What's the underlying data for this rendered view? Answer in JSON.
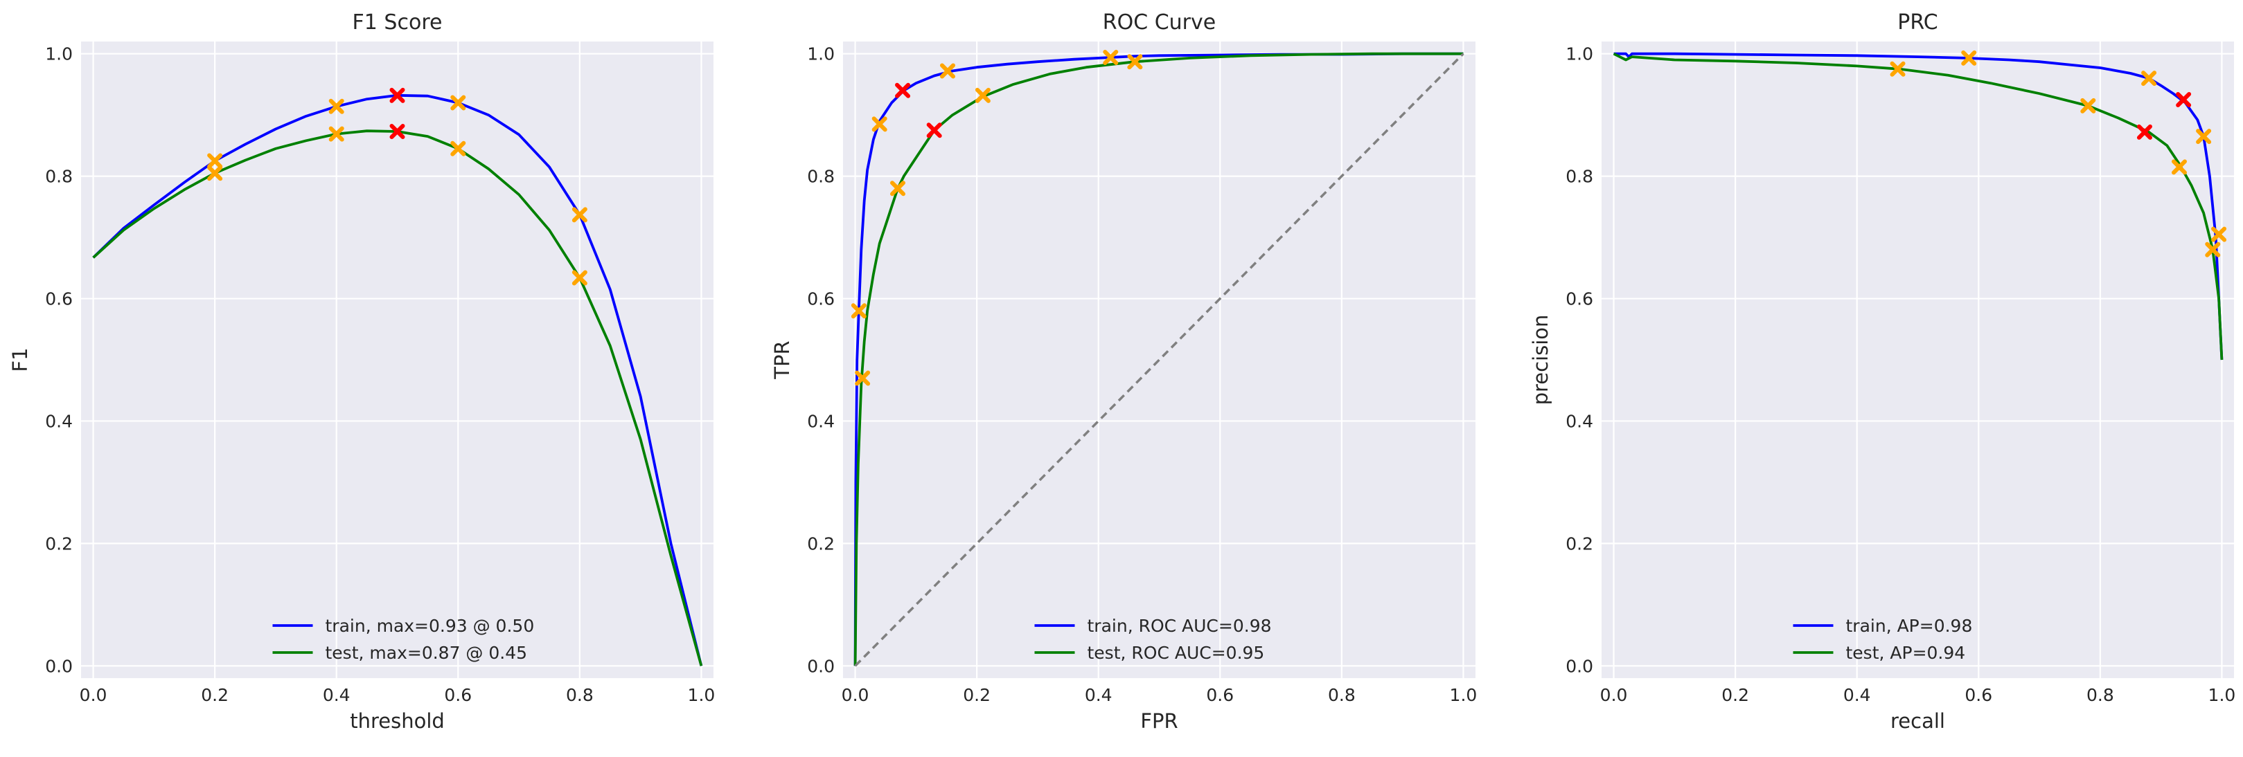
{
  "chart_data": [
    {
      "type": "line",
      "title": "F1 Score",
      "xlabel": "threshold",
      "ylabel": "F1",
      "xlim": [
        -0.02,
        1.02
      ],
      "ylim": [
        -0.02,
        1.02
      ],
      "xticks": [
        "0.0",
        "0.2",
        "0.4",
        "0.6",
        "0.8",
        "1.0"
      ],
      "yticks": [
        "0.0",
        "0.2",
        "0.4",
        "0.6",
        "0.8",
        "1.0"
      ],
      "grid": true,
      "legend_position": "lower center",
      "series": [
        {
          "name": "train, max=0.93 @ 0.50",
          "color": "#0000ff",
          "x": [
            0.0,
            0.05,
            0.1,
            0.15,
            0.2,
            0.25,
            0.3,
            0.35,
            0.4,
            0.45,
            0.5,
            0.55,
            0.6,
            0.65,
            0.7,
            0.75,
            0.8,
            0.85,
            0.9,
            0.95,
            1.0
          ],
          "y": [
            0.667,
            0.715,
            0.753,
            0.79,
            0.825,
            0.852,
            0.877,
            0.898,
            0.914,
            0.926,
            0.932,
            0.931,
            0.92,
            0.9,
            0.868,
            0.815,
            0.737,
            0.615,
            0.44,
            0.2,
            0.0
          ]
        },
        {
          "name": "test, max=0.87 @ 0.45",
          "color": "#008000",
          "x": [
            0.0,
            0.05,
            0.1,
            0.15,
            0.2,
            0.25,
            0.3,
            0.35,
            0.4,
            0.45,
            0.5,
            0.55,
            0.6,
            0.65,
            0.7,
            0.75,
            0.8,
            0.85,
            0.9,
            0.95,
            1.0
          ],
          "y": [
            0.667,
            0.712,
            0.747,
            0.778,
            0.805,
            0.826,
            0.845,
            0.858,
            0.869,
            0.874,
            0.873,
            0.865,
            0.845,
            0.812,
            0.77,
            0.712,
            0.634,
            0.523,
            0.37,
            0.18,
            0.0
          ]
        }
      ],
      "markers": [
        {
          "x": 0.2,
          "y": 0.825,
          "color": "#ffa500"
        },
        {
          "x": 0.4,
          "y": 0.914,
          "color": "#ffa500"
        },
        {
          "x": 0.6,
          "y": 0.92,
          "color": "#ffa500"
        },
        {
          "x": 0.8,
          "y": 0.737,
          "color": "#ffa500"
        },
        {
          "x": 0.5,
          "y": 0.932,
          "color": "#ff0000"
        },
        {
          "x": 0.2,
          "y": 0.805,
          "color": "#ffa500"
        },
        {
          "x": 0.4,
          "y": 0.869,
          "color": "#ffa500"
        },
        {
          "x": 0.6,
          "y": 0.845,
          "color": "#ffa500"
        },
        {
          "x": 0.8,
          "y": 0.634,
          "color": "#ffa500"
        },
        {
          "x": 0.5,
          "y": 0.873,
          "color": "#ff0000"
        }
      ]
    },
    {
      "type": "line",
      "title": "ROC Curve",
      "xlabel": "FPR",
      "ylabel": "TPR",
      "xlim": [
        -0.02,
        1.02
      ],
      "ylim": [
        -0.02,
        1.02
      ],
      "xticks": [
        "0.0",
        "0.2",
        "0.4",
        "0.6",
        "0.8",
        "1.0"
      ],
      "yticks": [
        "0.0",
        "0.2",
        "0.4",
        "0.6",
        "0.8",
        "1.0"
      ],
      "grid": true,
      "legend_position": "lower center",
      "series": [
        {
          "name": "train, ROC AUC=0.98",
          "color": "#0000ff",
          "x": [
            0.0,
            0.001,
            0.003,
            0.006,
            0.01,
            0.015,
            0.02,
            0.03,
            0.04,
            0.05,
            0.06,
            0.08,
            0.1,
            0.13,
            0.16,
            0.2,
            0.25,
            0.3,
            0.36,
            0.42,
            0.46,
            0.5,
            0.6,
            0.7,
            0.8,
            0.9,
            1.0
          ],
          "y": [
            0.0,
            0.3,
            0.5,
            0.58,
            0.68,
            0.76,
            0.81,
            0.86,
            0.89,
            0.905,
            0.92,
            0.94,
            0.952,
            0.964,
            0.972,
            0.978,
            0.983,
            0.987,
            0.991,
            0.994,
            0.996,
            0.997,
            0.998,
            0.999,
            0.999,
            1.0,
            1.0
          ]
        },
        {
          "name": "test, ROC AUC=0.95",
          "color": "#008000",
          "x": [
            0.0,
            0.002,
            0.005,
            0.01,
            0.015,
            0.02,
            0.03,
            0.04,
            0.05,
            0.06,
            0.07,
            0.08,
            0.1,
            0.13,
            0.16,
            0.21,
            0.26,
            0.32,
            0.38,
            0.46,
            0.55,
            0.65,
            0.75,
            0.85,
            1.0
          ],
          "y": [
            0.0,
            0.2,
            0.33,
            0.46,
            0.53,
            0.58,
            0.64,
            0.69,
            0.72,
            0.75,
            0.78,
            0.8,
            0.83,
            0.875,
            0.9,
            0.93,
            0.95,
            0.967,
            0.978,
            0.987,
            0.993,
            0.997,
            0.999,
            1.0,
            1.0
          ]
        },
        {
          "name": "",
          "color": "#808080",
          "dashed": true,
          "x": [
            0.0,
            1.0
          ],
          "y": [
            0.0,
            1.0
          ]
        }
      ],
      "markers": [
        {
          "x": 0.006,
          "y": 0.58,
          "color": "#ffa500"
        },
        {
          "x": 0.04,
          "y": 0.885,
          "color": "#ffa500"
        },
        {
          "x": 0.078,
          "y": 0.94,
          "color": "#ff0000"
        },
        {
          "x": 0.152,
          "y": 0.972,
          "color": "#ffa500"
        },
        {
          "x": 0.42,
          "y": 0.994,
          "color": "#ffa500"
        },
        {
          "x": 0.012,
          "y": 0.47,
          "color": "#ffa500"
        },
        {
          "x": 0.07,
          "y": 0.78,
          "color": "#ffa500"
        },
        {
          "x": 0.13,
          "y": 0.875,
          "color": "#ff0000"
        },
        {
          "x": 0.21,
          "y": 0.932,
          "color": "#ffa500"
        },
        {
          "x": 0.46,
          "y": 0.987,
          "color": "#ffa500"
        }
      ]
    },
    {
      "type": "line",
      "title": "PRC",
      "xlabel": "recall",
      "ylabel": "precision",
      "xlim": [
        -0.02,
        1.02
      ],
      "ylim": [
        -0.02,
        1.02
      ],
      "xticks": [
        "0.0",
        "0.2",
        "0.4",
        "0.6",
        "0.8",
        "1.0"
      ],
      "yticks": [
        "0.0",
        "0.2",
        "0.4",
        "0.6",
        "0.8",
        "1.0"
      ],
      "grid": true,
      "legend_position": "lower center",
      "series": [
        {
          "name": "train, AP=0.98",
          "color": "#0000ff",
          "x": [
            0.0,
            0.02,
            0.025,
            0.03,
            0.1,
            0.2,
            0.3,
            0.4,
            0.5,
            0.58,
            0.65,
            0.7,
            0.75,
            0.8,
            0.85,
            0.88,
            0.9,
            0.92,
            0.94,
            0.96,
            0.97,
            0.98,
            0.99,
            0.995,
            1.0
          ],
          "y": [
            1.0,
            1.0,
            0.995,
            1.0,
            1.0,
            0.999,
            0.998,
            0.997,
            0.995,
            0.993,
            0.99,
            0.987,
            0.982,
            0.977,
            0.968,
            0.96,
            0.948,
            0.935,
            0.92,
            0.892,
            0.865,
            0.8,
            0.7,
            0.6,
            0.5
          ]
        },
        {
          "name": "test, AP=0.94",
          "color": "#008000",
          "x": [
            0.0,
            0.01,
            0.02,
            0.03,
            0.1,
            0.2,
            0.3,
            0.4,
            0.47,
            0.55,
            0.62,
            0.7,
            0.78,
            0.83,
            0.88,
            0.91,
            0.93,
            0.95,
            0.97,
            0.985,
            0.995,
            1.0
          ],
          "y": [
            1.0,
            0.995,
            0.99,
            0.995,
            0.99,
            0.988,
            0.985,
            0.98,
            0.975,
            0.965,
            0.952,
            0.935,
            0.915,
            0.895,
            0.872,
            0.85,
            0.82,
            0.785,
            0.74,
            0.68,
            0.6,
            0.5
          ]
        }
      ],
      "markers": [
        {
          "x": 0.584,
          "y": 0.993,
          "color": "#ffa500"
        },
        {
          "x": 0.88,
          "y": 0.96,
          "color": "#ffa500"
        },
        {
          "x": 0.937,
          "y": 0.925,
          "color": "#ff0000"
        },
        {
          "x": 0.97,
          "y": 0.865,
          "color": "#ffa500"
        },
        {
          "x": 0.995,
          "y": 0.705,
          "color": "#ffa500"
        },
        {
          "x": 0.467,
          "y": 0.975,
          "color": "#ffa500"
        },
        {
          "x": 0.78,
          "y": 0.915,
          "color": "#ffa500"
        },
        {
          "x": 0.873,
          "y": 0.872,
          "color": "#ff0000"
        },
        {
          "x": 0.93,
          "y": 0.815,
          "color": "#ffa500"
        },
        {
          "x": 0.985,
          "y": 0.68,
          "color": "#ffa500"
        }
      ]
    }
  ]
}
